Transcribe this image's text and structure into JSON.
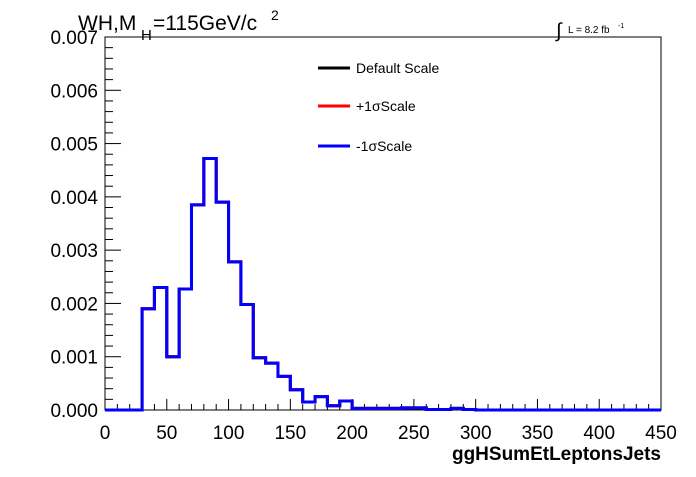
{
  "header": {
    "title_main": "WH,M",
    "title_sub": "H",
    "title_rest": "=115GeV/c",
    "title_sup": "2",
    "lumi_text": "L = 8.2 fb",
    "lumi_sup": "-1",
    "integral_symbol": "∫"
  },
  "legend": {
    "placement": "top-right",
    "entries": [
      {
        "label": "Default Scale",
        "color": "#000000"
      },
      {
        "label": "+1σScale",
        "color": "#ff0000"
      },
      {
        "label": "-1σScale",
        "color": "#0000ff"
      }
    ]
  },
  "chart_data": {
    "type": "line",
    "step": true,
    "title": "WH,M_H=115GeV/c^2",
    "xlabel": "ggHSumEtLeptonsJets",
    "ylabel": "",
    "xlim": [
      0,
      450
    ],
    "ylim": [
      0,
      0.007
    ],
    "grid": false,
    "x_tick_labels": [
      "0",
      "50",
      "100",
      "150",
      "200",
      "250",
      "300",
      "350",
      "400",
      "450"
    ],
    "y_tick_labels": [
      "0.000",
      "0.001",
      "0.002",
      "0.003",
      "0.004",
      "0.005",
      "0.006",
      "0.007"
    ],
    "x_bin_edges": [
      0,
      10,
      20,
      30,
      40,
      50,
      60,
      70,
      80,
      90,
      100,
      110,
      120,
      130,
      140,
      150,
      160,
      170,
      180,
      190,
      200,
      210,
      220,
      230,
      240,
      250,
      260,
      270,
      280,
      290,
      300,
      310,
      320,
      330,
      340,
      350,
      360,
      370,
      380,
      390,
      400,
      410,
      420,
      430,
      440,
      450
    ],
    "series": [
      {
        "name": "Default Scale",
        "color": "#000000",
        "values": [
          0,
          0,
          0,
          0.0019,
          0.0023,
          0.001,
          0.00227,
          0.00385,
          0.00472,
          0.0039,
          0.00278,
          0.00198,
          0.00098,
          0.00088,
          0.00063,
          0.00038,
          0.00015,
          0.00025,
          8e-05,
          0.00017,
          3e-05,
          3e-05,
          3e-05,
          3e-05,
          4e-05,
          4e-05,
          1e-05,
          1e-05,
          3e-05,
          1e-05,
          0,
          0,
          0,
          0,
          0,
          0,
          0,
          0,
          0,
          0,
          0,
          0,
          0,
          0,
          0
        ]
      },
      {
        "name": "+1σScale",
        "color": "#ff0000",
        "values": [
          0,
          0,
          0,
          0.0019,
          0.0023,
          0.001,
          0.00227,
          0.00385,
          0.00472,
          0.0039,
          0.00278,
          0.00198,
          0.00098,
          0.00088,
          0.00063,
          0.00038,
          0.00015,
          0.00025,
          8e-05,
          0.00017,
          3e-05,
          3e-05,
          3e-05,
          3e-05,
          4e-05,
          4e-05,
          1e-05,
          1e-05,
          3e-05,
          1e-05,
          0,
          0,
          0,
          0,
          0,
          0,
          0,
          0,
          0,
          0,
          0,
          0,
          0,
          0,
          0
        ]
      },
      {
        "name": "-1σScale",
        "color": "#0000ff",
        "values": [
          0,
          0,
          0,
          0.0019,
          0.0023,
          0.001,
          0.00227,
          0.00385,
          0.00472,
          0.0039,
          0.00278,
          0.00198,
          0.00098,
          0.00088,
          0.00063,
          0.00038,
          0.00015,
          0.00025,
          8e-05,
          0.00017,
          3e-05,
          3e-05,
          3e-05,
          3e-05,
          4e-05,
          4e-05,
          1e-05,
          1e-05,
          3e-05,
          1e-05,
          0,
          0,
          0,
          0,
          0,
          0,
          0,
          0,
          0,
          0,
          0,
          0,
          0,
          0,
          0
        ]
      }
    ]
  }
}
